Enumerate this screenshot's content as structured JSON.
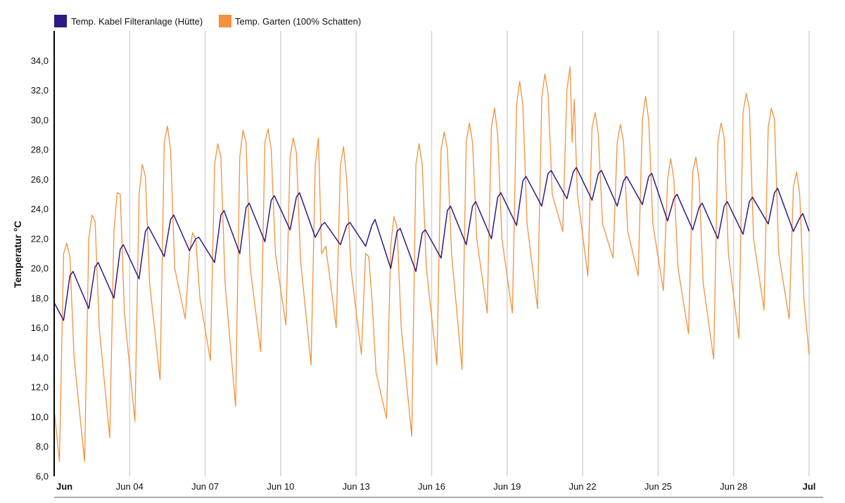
{
  "chart_data": {
    "type": "line",
    "title": "",
    "xlabel": "",
    "ylabel": "Temperatur °C",
    "ylim": [
      6,
      36
    ],
    "xlim": [
      "2024-06-01",
      "2024-07-01"
    ],
    "y_ticks": [
      "6,0",
      "8,0",
      "10,0",
      "12,0",
      "14,0",
      "16,0",
      "18,0",
      "20,0",
      "22,0",
      "24,0",
      "26,0",
      "28,0",
      "30,0",
      "32,0",
      "34,0"
    ],
    "x_ticks": [
      {
        "date": "2024-06-01",
        "label": "Jun",
        "bold": true
      },
      {
        "date": "2024-06-04",
        "label": "Jun 04",
        "bold": false
      },
      {
        "date": "2024-06-07",
        "label": "Jun 07",
        "bold": false
      },
      {
        "date": "2024-06-10",
        "label": "Jun 10",
        "bold": false
      },
      {
        "date": "2024-06-13",
        "label": "Jun 13",
        "bold": false
      },
      {
        "date": "2024-06-16",
        "label": "Jun 16",
        "bold": false
      },
      {
        "date": "2024-06-19",
        "label": "Jun 19",
        "bold": false
      },
      {
        "date": "2024-06-22",
        "label": "Jun 22",
        "bold": false
      },
      {
        "date": "2024-06-25",
        "label": "Jun 25",
        "bold": false
      },
      {
        "date": "2024-06-28",
        "label": "Jun 28",
        "bold": false
      },
      {
        "date": "2024-07-01",
        "label": "Jul",
        "bold": true
      }
    ],
    "grid": "vertical",
    "legend_position": "top-left",
    "series": [
      {
        "name": "Temp. Kabel Filteranlage (Hütte)",
        "color": "#2e1a87",
        "points": [
          [
            "2024-06-01 00:00",
            17.7
          ],
          [
            "2024-06-01 09:00",
            16.5
          ],
          [
            "2024-06-01 15:00",
            19.5
          ],
          [
            "2024-06-01 18:00",
            19.8
          ],
          [
            "2024-06-02 09:00",
            17.3
          ],
          [
            "2024-06-02 15:00",
            20.1
          ],
          [
            "2024-06-02 18:00",
            20.4
          ],
          [
            "2024-06-03 09:00",
            18.0
          ],
          [
            "2024-06-03 15:00",
            21.3
          ],
          [
            "2024-06-03 18:00",
            21.6
          ],
          [
            "2024-06-04 09:00",
            19.3
          ],
          [
            "2024-06-04 15:00",
            22.5
          ],
          [
            "2024-06-04 18:00",
            22.8
          ],
          [
            "2024-06-05 09:00",
            20.8
          ],
          [
            "2024-06-05 15:00",
            23.3
          ],
          [
            "2024-06-05 18:00",
            23.6
          ],
          [
            "2024-06-06 09:00",
            21.2
          ],
          [
            "2024-06-06 15:00",
            22.0
          ],
          [
            "2024-06-06 18:00",
            22.1
          ],
          [
            "2024-06-07 09:00",
            20.4
          ],
          [
            "2024-06-07 15:00",
            23.6
          ],
          [
            "2024-06-07 18:00",
            23.9
          ],
          [
            "2024-06-08 09:00",
            21.0
          ],
          [
            "2024-06-08 15:00",
            24.1
          ],
          [
            "2024-06-08 18:00",
            24.4
          ],
          [
            "2024-06-09 09:00",
            21.8
          ],
          [
            "2024-06-09 15:00",
            24.6
          ],
          [
            "2024-06-09 18:00",
            24.9
          ],
          [
            "2024-06-10 09:00",
            22.6
          ],
          [
            "2024-06-10 15:00",
            24.8
          ],
          [
            "2024-06-10 18:00",
            25.1
          ],
          [
            "2024-06-11 09:00",
            22.1
          ],
          [
            "2024-06-11 15:00",
            22.9
          ],
          [
            "2024-06-11 18:00",
            23.1
          ],
          [
            "2024-06-12 09:00",
            21.6
          ],
          [
            "2024-06-12 15:00",
            22.9
          ],
          [
            "2024-06-12 18:00",
            23.1
          ],
          [
            "2024-06-13 09:00",
            21.5
          ],
          [
            "2024-06-13 15:00",
            22.9
          ],
          [
            "2024-06-13 18:00",
            23.3
          ],
          [
            "2024-06-14 09:00",
            20.0
          ],
          [
            "2024-06-14 15:00",
            22.5
          ],
          [
            "2024-06-14 18:00",
            22.7
          ],
          [
            "2024-06-15 09:00",
            19.8
          ],
          [
            "2024-06-15 15:00",
            22.4
          ],
          [
            "2024-06-15 18:00",
            22.6
          ],
          [
            "2024-06-16 09:00",
            20.7
          ],
          [
            "2024-06-16 15:00",
            23.9
          ],
          [
            "2024-06-16 18:00",
            24.2
          ],
          [
            "2024-06-17 09:00",
            21.6
          ],
          [
            "2024-06-17 15:00",
            24.2
          ],
          [
            "2024-06-17 18:00",
            24.5
          ],
          [
            "2024-06-18 09:00",
            22.0
          ],
          [
            "2024-06-18 15:00",
            24.8
          ],
          [
            "2024-06-18 18:00",
            25.1
          ],
          [
            "2024-06-19 09:00",
            22.9
          ],
          [
            "2024-06-19 15:00",
            25.9
          ],
          [
            "2024-06-19 18:00",
            26.2
          ],
          [
            "2024-06-20 09:00",
            24.2
          ],
          [
            "2024-06-20 15:00",
            26.4
          ],
          [
            "2024-06-20 18:00",
            26.6
          ],
          [
            "2024-06-21 09:00",
            24.7
          ],
          [
            "2024-06-21 15:00",
            26.5
          ],
          [
            "2024-06-21 18:00",
            26.8
          ],
          [
            "2024-06-22 09:00",
            24.6
          ],
          [
            "2024-06-22 15:00",
            26.4
          ],
          [
            "2024-06-22 18:00",
            26.6
          ],
          [
            "2024-06-23 09:00",
            24.2
          ],
          [
            "2024-06-23 15:00",
            25.9
          ],
          [
            "2024-06-23 18:00",
            26.2
          ],
          [
            "2024-06-24 09:00",
            24.3
          ],
          [
            "2024-06-24 15:00",
            26.2
          ],
          [
            "2024-06-24 18:00",
            26.4
          ],
          [
            "2024-06-25 09:00",
            23.2
          ],
          [
            "2024-06-25 15:00",
            24.7
          ],
          [
            "2024-06-25 18:00",
            25.0
          ],
          [
            "2024-06-26 09:00",
            22.6
          ],
          [
            "2024-06-26 15:00",
            24.1
          ],
          [
            "2024-06-26 18:00",
            24.4
          ],
          [
            "2024-06-27 09:00",
            22.0
          ],
          [
            "2024-06-27 15:00",
            24.2
          ],
          [
            "2024-06-27 18:00",
            24.5
          ],
          [
            "2024-06-28 09:00",
            22.3
          ],
          [
            "2024-06-28 15:00",
            24.5
          ],
          [
            "2024-06-28 18:00",
            24.8
          ],
          [
            "2024-06-29 09:00",
            23.0
          ],
          [
            "2024-06-29 15:00",
            25.1
          ],
          [
            "2024-06-29 18:00",
            25.4
          ],
          [
            "2024-06-30 09:00",
            22.5
          ],
          [
            "2024-06-30 15:00",
            23.4
          ],
          [
            "2024-06-30 18:00",
            23.7
          ],
          [
            "2024-07-01 00:00",
            22.5
          ]
        ]
      },
      {
        "name": "Temp. Garten (100% Schatten)",
        "color": "#f3913d",
        "points": [
          [
            "2024-06-01 00:00",
            10.5
          ],
          [
            "2024-06-01 05:00",
            7.0
          ],
          [
            "2024-06-01 09:00",
            21.0
          ],
          [
            "2024-06-01 12:00",
            21.7
          ],
          [
            "2024-06-01 15:00",
            20.8
          ],
          [
            "2024-06-01 19:00",
            14.0
          ],
          [
            "2024-06-02 05:00",
            7.0
          ],
          [
            "2024-06-02 09:00",
            22.0
          ],
          [
            "2024-06-02 12:00",
            23.6
          ],
          [
            "2024-06-02 15:00",
            23.2
          ],
          [
            "2024-06-02 19:00",
            16.0
          ],
          [
            "2024-06-03 05:00",
            8.6
          ],
          [
            "2024-06-03 09:00",
            22.5
          ],
          [
            "2024-06-03 12:00",
            25.1
          ],
          [
            "2024-06-03 15:00",
            25.0
          ],
          [
            "2024-06-03 19:00",
            17.0
          ],
          [
            "2024-06-04 05:00",
            9.7
          ],
          [
            "2024-06-04 09:00",
            25.0
          ],
          [
            "2024-06-04 12:00",
            27.0
          ],
          [
            "2024-06-04 15:00",
            26.2
          ],
          [
            "2024-06-04 19:00",
            19.0
          ],
          [
            "2024-06-05 05:00",
            12.5
          ],
          [
            "2024-06-05 09:00",
            28.5
          ],
          [
            "2024-06-05 12:00",
            29.6
          ],
          [
            "2024-06-05 15:00",
            28.0
          ],
          [
            "2024-06-05 19:00",
            20.0
          ],
          [
            "2024-06-06 05:00",
            16.6
          ],
          [
            "2024-06-06 09:00",
            21.0
          ],
          [
            "2024-06-06 12:00",
            22.4
          ],
          [
            "2024-06-06 15:00",
            22.0
          ],
          [
            "2024-06-06 19:00",
            18.0
          ],
          [
            "2024-06-07 05:00",
            13.8
          ],
          [
            "2024-06-07 09:00",
            27.0
          ],
          [
            "2024-06-07 12:00",
            28.4
          ],
          [
            "2024-06-07 15:00",
            27.5
          ],
          [
            "2024-06-07 19:00",
            19.0
          ],
          [
            "2024-06-08 05:00",
            10.7
          ],
          [
            "2024-06-08 09:00",
            27.5
          ],
          [
            "2024-06-08 12:00",
            29.3
          ],
          [
            "2024-06-08 15:00",
            28.5
          ],
          [
            "2024-06-08 19:00",
            20.0
          ],
          [
            "2024-06-09 05:00",
            14.4
          ],
          [
            "2024-06-09 09:00",
            28.5
          ],
          [
            "2024-06-09 12:00",
            29.4
          ],
          [
            "2024-06-09 15:00",
            28.0
          ],
          [
            "2024-06-09 19:00",
            21.0
          ],
          [
            "2024-06-10 05:00",
            16.2
          ],
          [
            "2024-06-10 09:00",
            27.5
          ],
          [
            "2024-06-10 12:00",
            28.8
          ],
          [
            "2024-06-10 15:00",
            27.8
          ],
          [
            "2024-06-10 19:00",
            20.5
          ],
          [
            "2024-06-11 05:00",
            13.5
          ],
          [
            "2024-06-11 09:00",
            27.0
          ],
          [
            "2024-06-11 12:00",
            28.8
          ],
          [
            "2024-06-11 15:00",
            21.0
          ],
          [
            "2024-06-11 19:00",
            21.5
          ],
          [
            "2024-06-12 05:00",
            16.0
          ],
          [
            "2024-06-12 09:00",
            27.0
          ],
          [
            "2024-06-12 12:00",
            28.2
          ],
          [
            "2024-06-12 15:00",
            26.0
          ],
          [
            "2024-06-12 19:00",
            20.0
          ],
          [
            "2024-06-13 05:00",
            14.2
          ],
          [
            "2024-06-13 09:00",
            21.0
          ],
          [
            "2024-06-13 12:00",
            20.8
          ],
          [
            "2024-06-13 15:00",
            18.0
          ],
          [
            "2024-06-13 19:00",
            13.0
          ],
          [
            "2024-06-14 05:00",
            9.9
          ],
          [
            "2024-06-14 09:00",
            21.5
          ],
          [
            "2024-06-14 12:00",
            23.5
          ],
          [
            "2024-06-14 15:00",
            22.8
          ],
          [
            "2024-06-14 19:00",
            16.0
          ],
          [
            "2024-06-15 05:00",
            8.7
          ],
          [
            "2024-06-15 09:00",
            27.0
          ],
          [
            "2024-06-15 12:00",
            28.4
          ],
          [
            "2024-06-15 15:00",
            27.0
          ],
          [
            "2024-06-15 19:00",
            20.0
          ],
          [
            "2024-06-16 05:00",
            13.5
          ],
          [
            "2024-06-16 09:00",
            28.0
          ],
          [
            "2024-06-16 12:00",
            29.2
          ],
          [
            "2024-06-16 15:00",
            28.0
          ],
          [
            "2024-06-16 19:00",
            21.0
          ],
          [
            "2024-06-17 05:00",
            13.2
          ],
          [
            "2024-06-17 09:00",
            28.5
          ],
          [
            "2024-06-17 12:00",
            29.8
          ],
          [
            "2024-06-17 15:00",
            28.5
          ],
          [
            "2024-06-17 19:00",
            22.0
          ],
          [
            "2024-06-18 05:00",
            17.0
          ],
          [
            "2024-06-18 09:00",
            29.5
          ],
          [
            "2024-06-18 12:00",
            30.8
          ],
          [
            "2024-06-18 15:00",
            29.0
          ],
          [
            "2024-06-18 19:00",
            22.0
          ],
          [
            "2024-06-19 05:00",
            17.0
          ],
          [
            "2024-06-19 09:00",
            31.0
          ],
          [
            "2024-06-19 12:00",
            32.6
          ],
          [
            "2024-06-19 15:00",
            31.0
          ],
          [
            "2024-06-19 19:00",
            23.0
          ],
          [
            "2024-06-20 05:00",
            17.3
          ],
          [
            "2024-06-20 09:00",
            31.5
          ],
          [
            "2024-06-20 12:00",
            33.1
          ],
          [
            "2024-06-20 15:00",
            31.8
          ],
          [
            "2024-06-20 19:00",
            25.0
          ],
          [
            "2024-06-21 05:00",
            22.5
          ],
          [
            "2024-06-21 09:00",
            32.0
          ],
          [
            "2024-06-21 12:00",
            33.6
          ],
          [
            "2024-06-21 14:00",
            28.5
          ],
          [
            "2024-06-21 16:00",
            31.4
          ],
          [
            "2024-06-21 19:00",
            25.0
          ],
          [
            "2024-06-22 05:00",
            19.5
          ],
          [
            "2024-06-22 09:00",
            29.5
          ],
          [
            "2024-06-22 12:00",
            30.5
          ],
          [
            "2024-06-22 15:00",
            29.0
          ],
          [
            "2024-06-22 19:00",
            23.0
          ],
          [
            "2024-06-23 05:00",
            20.7
          ],
          [
            "2024-06-23 09:00",
            28.5
          ],
          [
            "2024-06-23 12:00",
            29.7
          ],
          [
            "2024-06-23 15:00",
            28.5
          ],
          [
            "2024-06-23 19:00",
            22.5
          ],
          [
            "2024-06-24 05:00",
            19.5
          ],
          [
            "2024-06-24 09:00",
            30.0
          ],
          [
            "2024-06-24 12:00",
            31.6
          ],
          [
            "2024-06-24 15:00",
            30.0
          ],
          [
            "2024-06-24 19:00",
            23.0
          ],
          [
            "2024-06-25 05:00",
            18.5
          ],
          [
            "2024-06-25 09:00",
            26.0
          ],
          [
            "2024-06-25 12:00",
            27.4
          ],
          [
            "2024-06-25 15:00",
            26.0
          ],
          [
            "2024-06-25 19:00",
            20.0
          ],
          [
            "2024-06-26 05:00",
            15.6
          ],
          [
            "2024-06-26 09:00",
            26.5
          ],
          [
            "2024-06-26 12:00",
            27.5
          ],
          [
            "2024-06-26 15:00",
            26.0
          ],
          [
            "2024-06-26 19:00",
            19.0
          ],
          [
            "2024-06-27 05:00",
            13.9
          ],
          [
            "2024-06-27 09:00",
            28.5
          ],
          [
            "2024-06-27 12:00",
            29.8
          ],
          [
            "2024-06-27 15:00",
            28.8
          ],
          [
            "2024-06-27 19:00",
            21.0
          ],
          [
            "2024-06-28 05:00",
            15.3
          ],
          [
            "2024-06-28 09:00",
            30.5
          ],
          [
            "2024-06-28 12:00",
            31.8
          ],
          [
            "2024-06-28 15:00",
            30.8
          ],
          [
            "2024-06-28 19:00",
            22.0
          ],
          [
            "2024-06-29 05:00",
            17.2
          ],
          [
            "2024-06-29 09:00",
            29.5
          ],
          [
            "2024-06-29 12:00",
            30.8
          ],
          [
            "2024-06-29 15:00",
            30.0
          ],
          [
            "2024-06-29 19:00",
            21.0
          ],
          [
            "2024-06-30 05:00",
            16.6
          ],
          [
            "2024-06-30 09:00",
            25.5
          ],
          [
            "2024-06-30 12:00",
            26.5
          ],
          [
            "2024-06-30 15:00",
            25.0
          ],
          [
            "2024-06-30 19:00",
            18.0
          ],
          [
            "2024-07-01 00:00",
            14.2
          ]
        ]
      }
    ]
  }
}
